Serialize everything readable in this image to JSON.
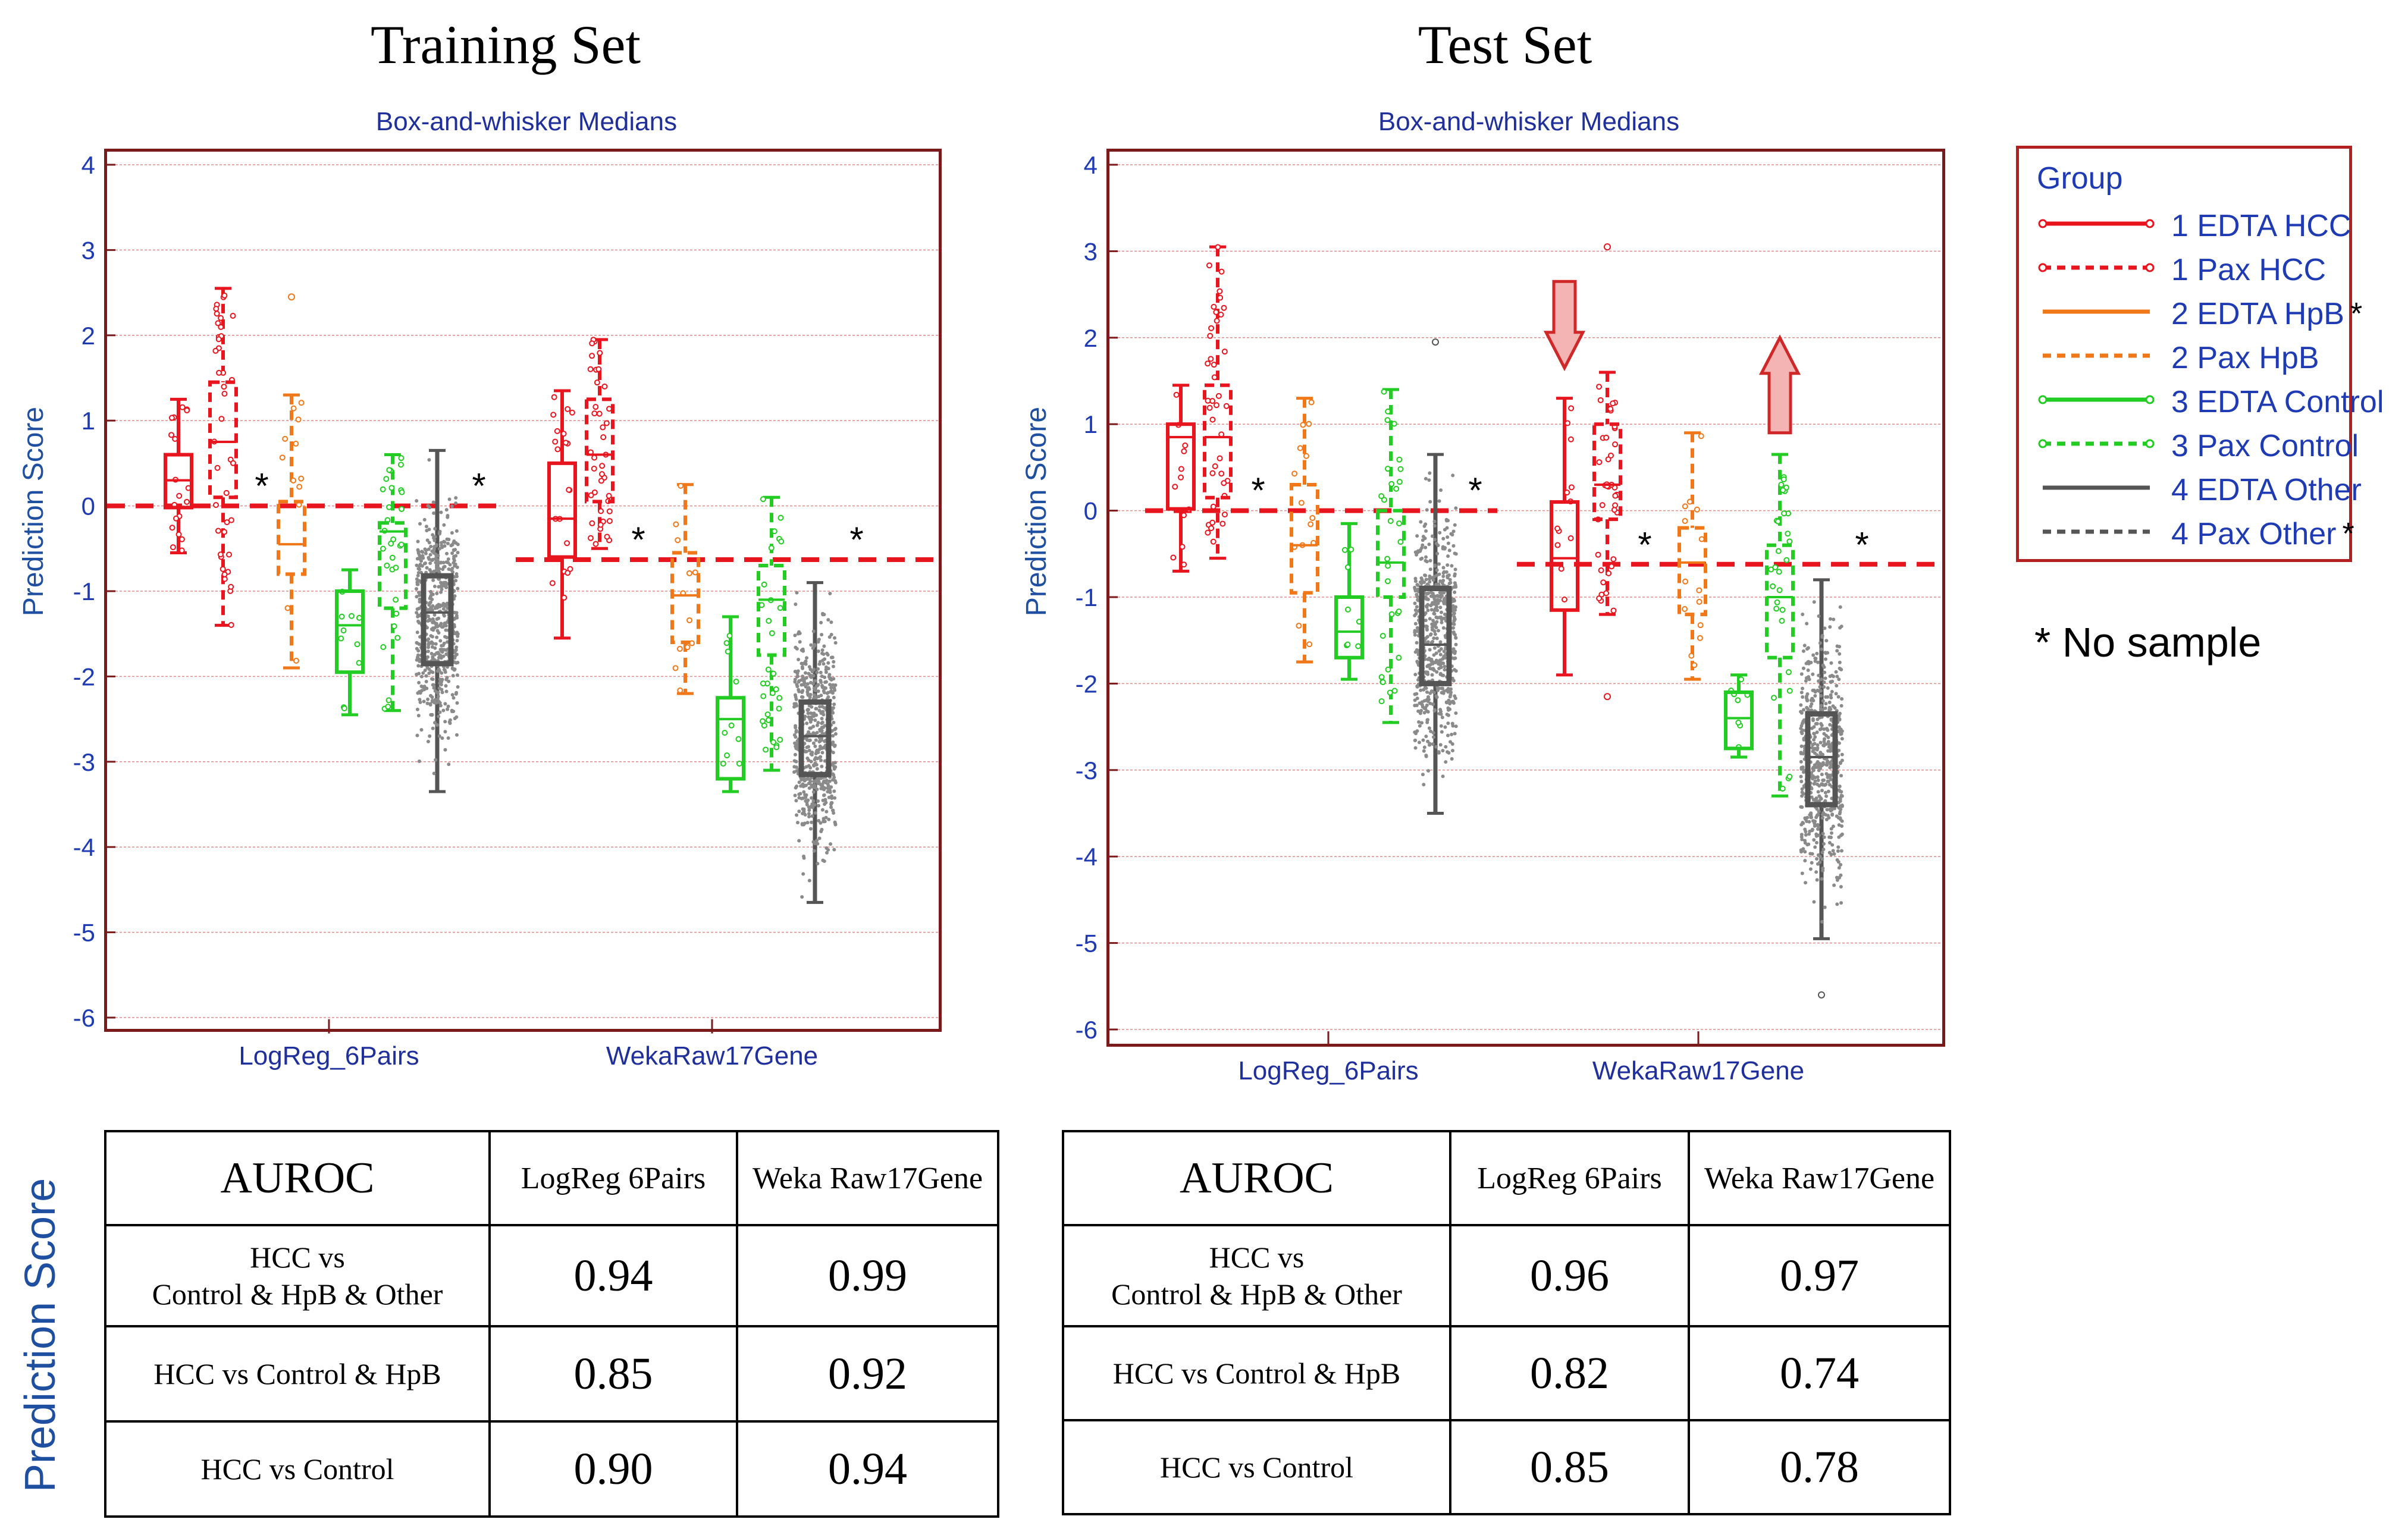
{
  "panels": [
    {
      "title": "Training Set",
      "subtitle": "Box-and-whisker  Medians",
      "ylabel": "Prediction Score",
      "categories": [
        "LogReg_6Pairs",
        "WekaRaw17Gene"
      ],
      "yticks": [
        "4",
        "3",
        "2",
        "1",
        "0",
        "-1",
        "-2",
        "-3",
        "-4",
        "-5",
        "-6"
      ],
      "thresholds": [
        0.0,
        -0.63
      ],
      "star_label": "*"
    },
    {
      "title": "Test Set",
      "subtitle": "Box-and-whisker  Medians",
      "ylabel": "Prediction Score",
      "categories": [
        "LogReg_6Pairs",
        "WekaRaw17Gene"
      ],
      "yticks": [
        "4",
        "3",
        "2",
        "1",
        "0",
        "-1",
        "-2",
        "-3",
        "-4",
        "-5",
        "-6"
      ],
      "thresholds": [
        0.0,
        -0.62
      ],
      "star_label": "*"
    }
  ],
  "legend": {
    "title": "Group",
    "items": [
      {
        "label": "1 EDTA HCC",
        "color": "#e8141e",
        "dashed": false,
        "star": ""
      },
      {
        "label": "1 Pax HCC",
        "color": "#e8141e",
        "dashed": true,
        "star": ""
      },
      {
        "label": "2 EDTA HpB",
        "color": "#f07818",
        "dashed": false,
        "star": "*"
      },
      {
        "label": "2 Pax HpB",
        "color": "#f07818",
        "dashed": true,
        "star": ""
      },
      {
        "label": "3 EDTA Control",
        "color": "#22cc22",
        "dashed": false,
        "star": ""
      },
      {
        "label": "3 Pax Control",
        "color": "#22cc22",
        "dashed": true,
        "star": ""
      },
      {
        "label": "4 EDTA Other",
        "color": "#555555",
        "dashed": false,
        "star": ""
      },
      {
        "label": "4 Pax Other",
        "color": "#555555",
        "dashed": true,
        "star": "*"
      }
    ]
  },
  "no_sample_note": "No sample",
  "side_label": "Prediction Score",
  "tables": [
    {
      "header": [
        "AUROC",
        "LogReg 6Pairs",
        "Weka Raw17Gene"
      ],
      "rows": [
        {
          "label_line1": "HCC vs",
          "label_line2": "Control & HpB & Other",
          "v1": "0.94",
          "v2": "0.99"
        },
        {
          "label_line1": "HCC vs Control & HpB",
          "label_line2": "",
          "v1": "0.85",
          "v2": "0.92"
        },
        {
          "label_line1": "HCC vs Control",
          "label_line2": "",
          "v1": "0.90",
          "v2": "0.94"
        }
      ]
    },
    {
      "header": [
        "AUROC",
        "LogReg 6Pairs",
        "Weka Raw17Gene"
      ],
      "rows": [
        {
          "label_line1": "HCC vs",
          "label_line2": "Control & HpB & Other",
          "v1": "0.96",
          "v2": "0.97"
        },
        {
          "label_line1": "HCC vs Control & HpB",
          "label_line2": "",
          "v1": "0.82",
          "v2": "0.74"
        },
        {
          "label_line1": "HCC vs Control",
          "label_line2": "",
          "v1": "0.85",
          "v2": "0.78"
        }
      ]
    }
  ],
  "chart_data": [
    {
      "type": "box",
      "title": "Training Set",
      "subtitle": "Box-and-whisker  Medians",
      "ylabel": "Prediction Score",
      "ylim": [
        -6.2,
        4.2
      ],
      "categories": [
        "LogReg_6Pairs",
        "WekaRaw17Gene"
      ],
      "thresholds": [
        {
          "category": "LogReg_6Pairs",
          "y": 0.0
        },
        {
          "category": "WekaRaw17Gene",
          "y": -0.63
        }
      ],
      "missing_groups": [
        "2 EDTA HpB",
        "4 Pax Other"
      ],
      "series": [
        {
          "name": "1 EDTA HCC",
          "boxes": [
            {
              "category": "LogReg_6Pairs",
              "min": -0.55,
              "q1": -0.02,
              "median": 0.3,
              "q3": 0.6,
              "max": 1.25,
              "n": 20
            },
            {
              "category": "WekaRaw17Gene",
              "min": -1.55,
              "q1": -0.6,
              "median": -0.15,
              "q3": 0.5,
              "max": 1.35,
              "n": 20
            }
          ]
        },
        {
          "name": "1 Pax HCC",
          "boxes": [
            {
              "category": "LogReg_6Pairs",
              "min": -1.4,
              "q1": 0.1,
              "median": 0.75,
              "q3": 1.45,
              "max": 2.55,
              "n": 40
            },
            {
              "category": "WekaRaw17Gene",
              "min": -0.5,
              "q1": 0.05,
              "median": 0.6,
              "q3": 1.25,
              "max": 1.95,
              "n": 40
            }
          ]
        },
        {
          "name": "2 Pax HpB",
          "boxes": [
            {
              "category": "LogReg_6Pairs",
              "min": -1.9,
              "q1": -0.8,
              "median": -0.45,
              "q3": 0.05,
              "max": 1.3,
              "n": 12,
              "outliers": [
                2.45
              ]
            },
            {
              "category": "WekaRaw17Gene",
              "min": -2.2,
              "q1": -1.6,
              "median": -1.05,
              "q3": -0.55,
              "max": 0.25,
              "n": 12
            }
          ]
        },
        {
          "name": "3 EDTA Control",
          "boxes": [
            {
              "category": "LogReg_6Pairs",
              "min": -2.45,
              "q1": -1.95,
              "median": -1.4,
              "q3": -1.0,
              "max": -0.75,
              "n": 10
            },
            {
              "category": "WekaRaw17Gene",
              "min": -3.35,
              "q1": -3.2,
              "median": -2.5,
              "q3": -2.25,
              "max": -1.3,
              "n": 10
            }
          ]
        },
        {
          "name": "3 Pax Control",
          "boxes": [
            {
              "category": "LogReg_6Pairs",
              "min": -2.4,
              "q1": -1.2,
              "median": -0.3,
              "q3": -0.2,
              "max": 0.6,
              "n": 30
            },
            {
              "category": "WekaRaw17Gene",
              "min": -3.1,
              "q1": -1.75,
              "median": -1.1,
              "q3": -0.7,
              "max": 0.1,
              "n": 30
            }
          ]
        },
        {
          "name": "4 EDTA Other",
          "boxes": [
            {
              "category": "LogReg_6Pairs",
              "min": -3.35,
              "q1": -1.85,
              "median": -1.25,
              "q3": -0.82,
              "max": 0.65,
              "n": 600
            },
            {
              "category": "WekaRaw17Gene",
              "min": -4.65,
              "q1": -3.15,
              "median": -2.7,
              "q3": -2.3,
              "max": -0.9,
              "n": 600
            }
          ]
        }
      ]
    },
    {
      "type": "box",
      "title": "Test Set",
      "subtitle": "Box-and-whisker  Medians",
      "ylabel": "Prediction Score",
      "ylim": [
        -6.2,
        4.2
      ],
      "categories": [
        "LogReg_6Pairs",
        "WekaRaw17Gene"
      ],
      "thresholds": [
        {
          "category": "LogReg_6Pairs",
          "y": 0.0
        },
        {
          "category": "WekaRaw17Gene",
          "y": -0.62
        }
      ],
      "missing_groups": [
        "2 EDTA HpB",
        "4 Pax Other"
      ],
      "annotations": [
        {
          "type": "arrow-down",
          "group": "1 EDTA HCC",
          "category": "WekaRaw17Gene"
        },
        {
          "type": "arrow-up",
          "group": "3 Pax Control",
          "category": "WekaRaw17Gene"
        }
      ],
      "series": [
        {
          "name": "1 EDTA HCC",
          "boxes": [
            {
              "category": "LogReg_6Pairs",
              "min": -0.7,
              "q1": 0.02,
              "median": 0.85,
              "q3": 1.0,
              "max": 1.45,
              "n": 12
            },
            {
              "category": "WekaRaw17Gene",
              "min": -1.9,
              "q1": -1.15,
              "median": -0.55,
              "q3": 0.1,
              "max": 1.3,
              "n": 12
            }
          ]
        },
        {
          "name": "1 Pax HCC",
          "boxes": [
            {
              "category": "LogReg_6Pairs",
              "min": -0.55,
              "q1": 0.15,
              "median": 0.85,
              "q3": 1.45,
              "max": 3.05,
              "n": 40
            },
            {
              "category": "WekaRaw17Gene",
              "min": -1.2,
              "q1": -0.1,
              "median": 0.3,
              "q3": 1.0,
              "max": 1.6,
              "n": 40,
              "outliers": [
                3.05,
                -2.15
              ]
            }
          ]
        },
        {
          "name": "2 Pax HpB",
          "boxes": [
            {
              "category": "LogReg_6Pairs",
              "min": -1.75,
              "q1": -0.95,
              "median": -0.4,
              "q3": 0.3,
              "max": 1.3,
              "n": 14
            },
            {
              "category": "WekaRaw17Gene",
              "min": -1.95,
              "q1": -1.2,
              "median": -0.6,
              "q3": -0.2,
              "max": 0.9,
              "n": 14
            }
          ]
        },
        {
          "name": "3 EDTA Control",
          "boxes": [
            {
              "category": "LogReg_6Pairs",
              "min": -1.95,
              "q1": -1.7,
              "median": -1.4,
              "q3": -1.0,
              "max": -0.15,
              "n": 8
            },
            {
              "category": "WekaRaw17Gene",
              "min": -2.85,
              "q1": -2.75,
              "median": -2.4,
              "q3": -2.1,
              "max": -1.9,
              "n": 8
            }
          ]
        },
        {
          "name": "3 Pax Control",
          "boxes": [
            {
              "category": "LogReg_6Pairs",
              "min": -2.45,
              "q1": -1.0,
              "median": -0.6,
              "q3": 0.0,
              "max": 1.4,
              "n": 30
            },
            {
              "category": "WekaRaw17Gene",
              "min": -3.3,
              "q1": -1.7,
              "median": -1.0,
              "q3": -0.4,
              "max": 0.65,
              "n": 30
            }
          ]
        },
        {
          "name": "4 EDTA Other",
          "boxes": [
            {
              "category": "LogReg_6Pairs",
              "min": -3.5,
              "q1": -2.0,
              "median": -1.55,
              "q3": -0.9,
              "max": 0.65,
              "n": 600,
              "outliers": [
                1.95
              ]
            },
            {
              "category": "WekaRaw17Gene",
              "min": -4.95,
              "q1": -3.4,
              "median": -2.85,
              "q3": -2.35,
              "max": -0.8,
              "n": 600,
              "outliers": [
                -5.6
              ]
            }
          ]
        }
      ]
    }
  ]
}
